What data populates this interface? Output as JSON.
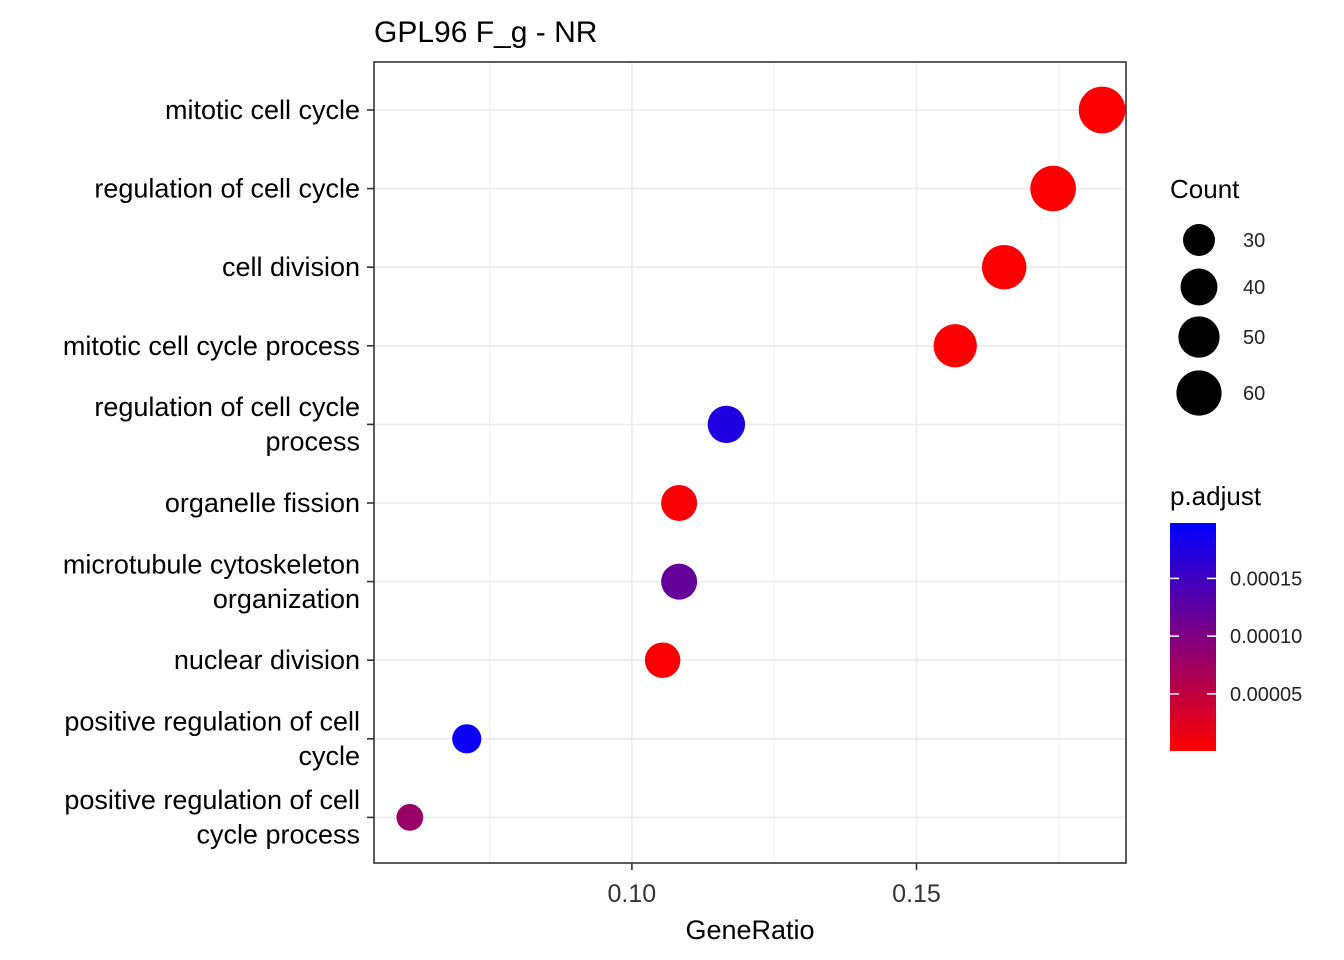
{
  "chart_data": {
    "type": "scatter",
    "title": "GPL96 F_g - NR",
    "xlabel": "GeneRatio",
    "ylabel": "",
    "xlim": [
      0.0547,
      0.1868
    ],
    "x_ticks": [
      0.1,
      0.15
    ],
    "x_tick_labels": [
      "0.10",
      "0.15"
    ],
    "grid": true,
    "legend_position": "right",
    "categories": [
      "mitotic cell cycle",
      "regulation of cell cycle",
      "cell division",
      "mitotic cell cycle process",
      "regulation of cell cycle process",
      "organelle fission",
      "microtubule cytoskeleton organization",
      "nuclear division",
      "positive regulation of cell cycle",
      "positive regulation of cell cycle process"
    ],
    "category_lines": [
      [
        "mitotic cell cycle"
      ],
      [
        "regulation of cell cycle"
      ],
      [
        "cell division"
      ],
      [
        "mitotic cell cycle process"
      ],
      [
        "regulation of cell cycle",
        "process"
      ],
      [
        "organelle fission"
      ],
      [
        "microtubule cytoskeleton",
        "organization"
      ],
      [
        "nuclear division"
      ],
      [
        "positive regulation of cell",
        "cycle"
      ],
      [
        "positive regulation of cell",
        "cycle process"
      ]
    ],
    "points": [
      {
        "gene_ratio": 0.1826,
        "count": 64,
        "p_adjust": 1e-06
      },
      {
        "gene_ratio": 0.174,
        "count": 61,
        "p_adjust": 2e-06
      },
      {
        "gene_ratio": 0.1654,
        "count": 58,
        "p_adjust": 1e-06
      },
      {
        "gene_ratio": 0.1568,
        "count": 55,
        "p_adjust": 3e-06
      },
      {
        "gene_ratio": 0.1166,
        "count": 41,
        "p_adjust": 0.000175
      },
      {
        "gene_ratio": 0.1083,
        "count": 38,
        "p_adjust": 4e-06
      },
      {
        "gene_ratio": 0.1083,
        "count": 38,
        "p_adjust": 0.00012
      },
      {
        "gene_ratio": 0.1054,
        "count": 37,
        "p_adjust": 4e-06
      },
      {
        "gene_ratio": 0.071,
        "count": 25,
        "p_adjust": 0.00019
      },
      {
        "gene_ratio": 0.061,
        "count": 21,
        "p_adjust": 8e-05
      }
    ],
    "size_legend": {
      "title": "Count",
      "values": [
        30,
        40,
        50,
        60
      ],
      "labels": [
        "30",
        "40",
        "50",
        "60"
      ]
    },
    "color_legend": {
      "title": "p.adjust",
      "range": [
        5e-07,
        0.000198
      ],
      "ticks": [
        5e-05,
        0.0001,
        0.00015
      ],
      "tick_labels": [
        "0.00005",
        "0.00010",
        "0.00015"
      ],
      "low_color": "#FF0000",
      "high_color": "#0000FF"
    }
  }
}
